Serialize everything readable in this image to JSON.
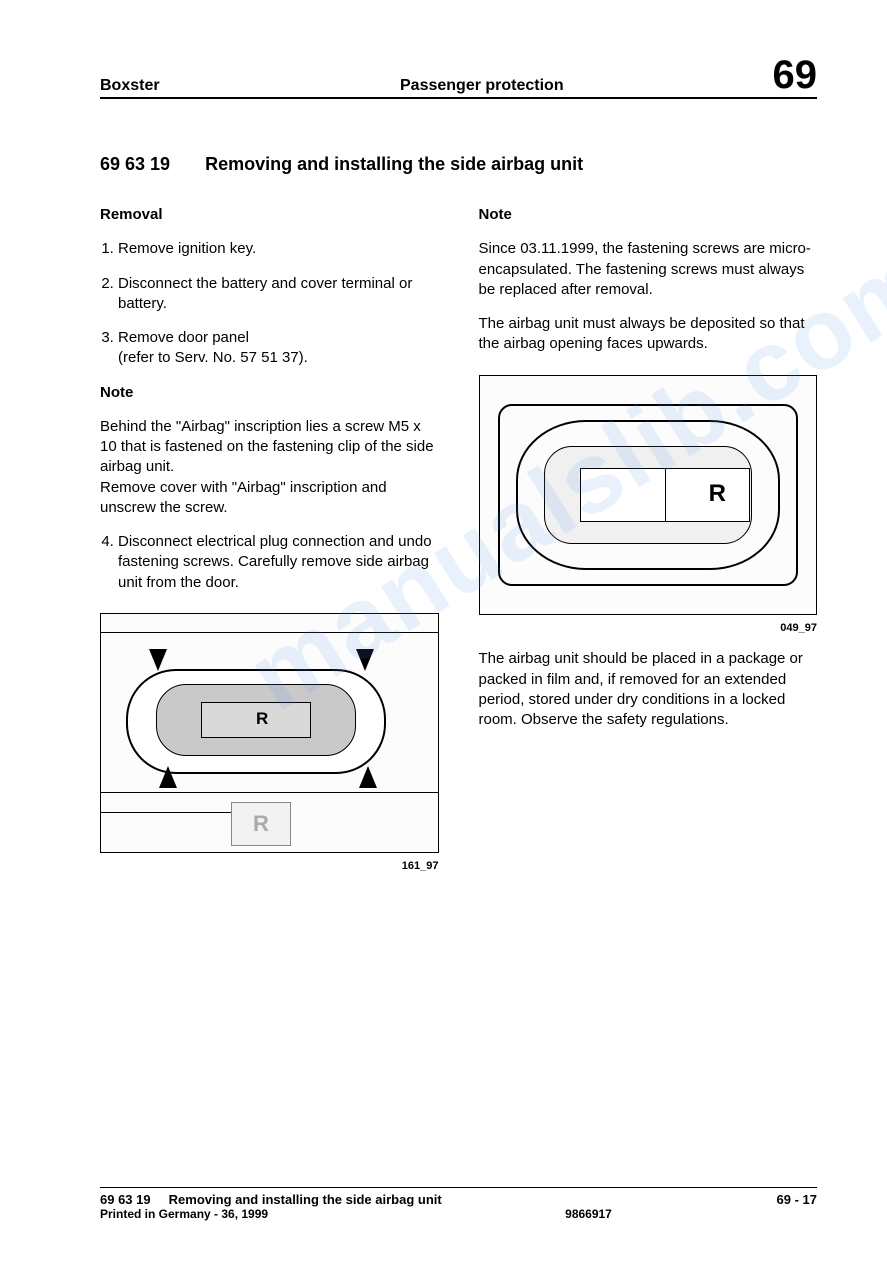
{
  "header": {
    "model": "Boxster",
    "section": "Passenger protection",
    "chapter": "69"
  },
  "title": {
    "code": "69 63 19",
    "text": "Removing and installing the side airbag unit"
  },
  "left": {
    "removal_head": "Removal",
    "step1": "Remove ignition key.",
    "step2": "Disconnect the battery and cover terminal or battery.",
    "step3": "Remove door panel\n(refer to Serv. No. 57 51 37).",
    "note_head": "Note",
    "note_body": "Behind the \"Airbag\" inscription lies a screw M5 x 10 that is fastened on the fastening clip of the side airbag unit.\nRemove cover with \"Airbag\" inscription and unscrew the screw.",
    "step4": "Disconnect electrical plug connection and undo fastening screws. Carefully remove side airbag unit from the door.",
    "fig1_caption": "161_97",
    "fig1_r_label": "R",
    "fig1_r2_label": "R"
  },
  "right": {
    "note_head": "Note",
    "note_p1": "Since 03.11.1999, the fastening screws are micro-encapsulated. The fastening screws must always be replaced after removal.",
    "note_p2": "The airbag unit must always be deposited so that the airbag opening faces upwards.",
    "fig2_caption": "049_97",
    "fig2_r_label": "R",
    "note_p3": "The airbag unit should be placed in a package or packed in film and, if removed for an extended period, stored under dry conditions in a locked room. Observe the safety regulations."
  },
  "footer": {
    "code": "69 63 19",
    "title": "Removing and installing the side airbag unit",
    "page": "69 - 17",
    "print": "Printed in Germany - 36, 1999",
    "docnum": "9866917"
  },
  "watermark": "manualslib.com"
}
